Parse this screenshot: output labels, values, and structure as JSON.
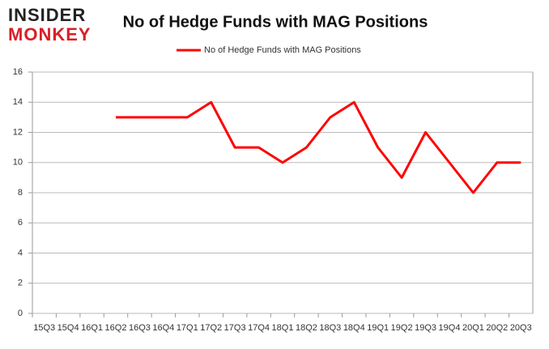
{
  "logo": {
    "line1": "INSIDER",
    "line2": "MONKEY"
  },
  "chart_data": {
    "type": "line",
    "title": "No of Hedge Funds with MAG Positions",
    "categories": [
      "15Q3",
      "15Q4",
      "16Q1",
      "16Q2",
      "16Q3",
      "16Q4",
      "17Q1",
      "17Q2",
      "17Q3",
      "17Q4",
      "18Q1",
      "18Q2",
      "18Q3",
      "18Q4",
      "19Q1",
      "19Q2",
      "19Q3",
      "19Q4",
      "20Q1",
      "20Q2",
      "20Q3"
    ],
    "series": [
      {
        "name": "No of Hedge Funds with MAG Positions",
        "color": "#ff0000",
        "values": [
          null,
          null,
          null,
          13,
          13,
          13,
          13,
          14,
          11,
          11,
          10,
          11,
          13,
          14,
          11,
          9,
          12,
          10,
          8,
          10,
          10
        ]
      }
    ],
    "ylim": [
      0,
      16
    ],
    "yticks": [
      0,
      2,
      4,
      6,
      8,
      10,
      12,
      14,
      16
    ],
    "grid": true,
    "legend": "top"
  }
}
